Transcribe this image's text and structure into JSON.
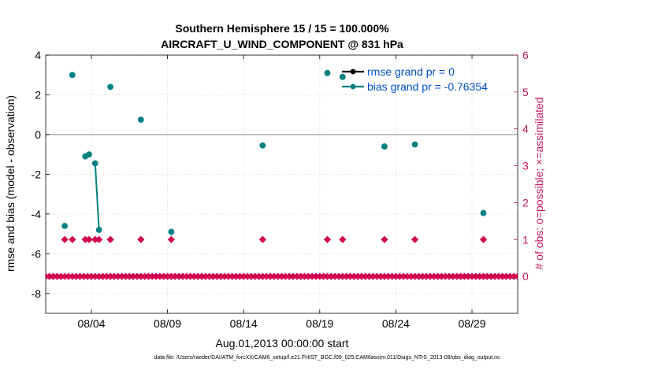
{
  "chart_data": {
    "type": "scatter",
    "title_line1": "Southern Hemisphere 15 / 15 = 100.000%",
    "title_line2": "AIRCRAFT_U_WIND_COMPONENT @ 831 hPa",
    "xlabel": "Aug.01,2013 00:00:00 start",
    "ylabel_left": "rmse and bias (model - observation)",
    "ylabel_right": "# of obs: o=possible; ×=assimilated",
    "xlim": [
      1.0,
      32.0
    ],
    "ylim_left": [
      -9,
      4
    ],
    "ylim_right": [
      -1,
      6
    ],
    "x_ticks": [
      {
        "x": 4.0,
        "label": "08/04"
      },
      {
        "x": 9.0,
        "label": "08/09"
      },
      {
        "x": 14.0,
        "label": "08/14"
      },
      {
        "x": 19.0,
        "label": "08/19"
      },
      {
        "x": 24.0,
        "label": "08/24"
      },
      {
        "x": 29.0,
        "label": "08/29"
      }
    ],
    "y_ticks_left": [
      4,
      2,
      0,
      -2,
      -4,
      -6,
      -8
    ],
    "y_ticks_right": [
      6,
      5,
      4,
      3,
      2,
      1,
      0
    ],
    "zero_line": 0,
    "legend": [
      {
        "label": "rmse grand pr = 0",
        "color": "#000000"
      },
      {
        "label": "bias grand pr = -0.76354",
        "color": "#008080"
      }
    ],
    "bias_points": [
      {
        "x": 2.25,
        "y": -4.6
      },
      {
        "x": 2.75,
        "y": 3.0
      },
      {
        "x": 3.6,
        "y": -1.1
      },
      {
        "x": 3.85,
        "y": -1.0
      },
      {
        "x": 4.25,
        "y": -1.45
      },
      {
        "x": 4.5,
        "y": -4.8
      },
      {
        "x": 5.25,
        "y": 2.4
      },
      {
        "x": 7.25,
        "y": 0.75
      },
      {
        "x": 9.25,
        "y": -4.9
      },
      {
        "x": 15.25,
        "y": -0.55
      },
      {
        "x": 19.5,
        "y": 3.1
      },
      {
        "x": 20.5,
        "y": 2.9
      },
      {
        "x": 23.25,
        "y": -0.6
      },
      {
        "x": 25.25,
        "y": -0.5
      },
      {
        "x": 29.75,
        "y": -3.95
      }
    ],
    "bias_line_segment": [
      {
        "x": 4.25,
        "y": -1.45
      },
      {
        "x": 4.5,
        "y": -4.8
      }
    ],
    "obs_count_ones_x": [
      2.25,
      2.75,
      3.6,
      3.85,
      4.25,
      4.5,
      5.25,
      7.25,
      9.25,
      15.25,
      19.5,
      20.5,
      23.25,
      25.25,
      29.75
    ],
    "obs_count_zero_x_range": [
      1.0,
      32.0
    ],
    "obs_count_zero_step": 0.25,
    "colors": {
      "bias": "#008080",
      "rmse": "#000000",
      "obs": "#d1004f",
      "right_axis": "#c2185b",
      "legend_text": "#0050d0",
      "zero_line": "#b3b3b3"
    }
  },
  "footer": "data file: /Users/raeder/DAI/ATM_forcXX/CAM6_setup/f.e21.FHIST_BGC.f09_025.CAM6assim.011/Diags_NTrS_2013-08/obs_diag_output.nc"
}
